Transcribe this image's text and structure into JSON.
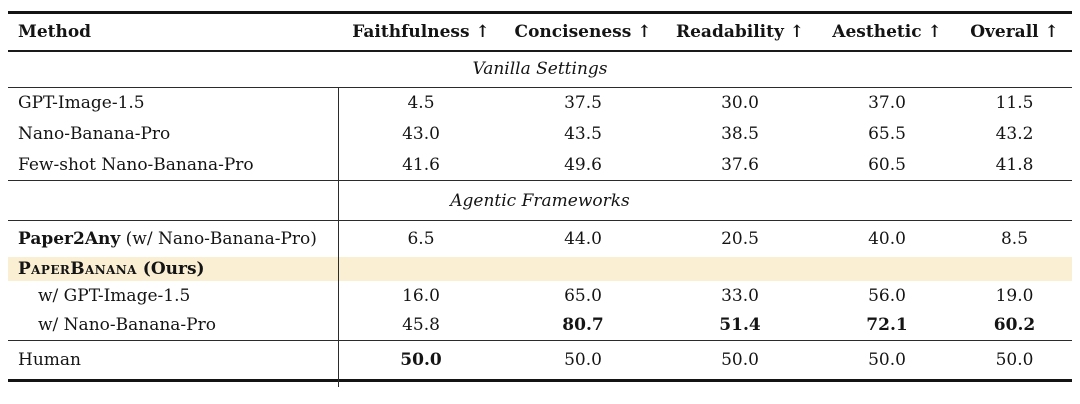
{
  "table": {
    "columns": [
      "Method",
      "Faithfulness ↑",
      "Conciseness ↑",
      "Readability ↑",
      "Aesthetic ↑",
      "Overall ↑"
    ],
    "highlight_color": "#FAEFD3",
    "text_color": "#141414",
    "rule_color": "#141414",
    "rows": [
      {
        "type": "section",
        "label": "Vanilla Settings"
      },
      {
        "type": "data",
        "name": "GPT-Image-1.5",
        "values": [
          "4.5",
          "37.5",
          "30.0",
          "37.0",
          "11.5"
        ],
        "bold": [
          false,
          false,
          false,
          false,
          false
        ]
      },
      {
        "type": "data",
        "name": "Nano-Banana-Pro",
        "values": [
          "43.0",
          "43.5",
          "38.5",
          "65.5",
          "43.2"
        ],
        "bold": [
          false,
          false,
          false,
          false,
          false
        ]
      },
      {
        "type": "data",
        "name": "Few-shot Nano-Banana-Pro",
        "values": [
          "41.6",
          "49.6",
          "37.6",
          "60.5",
          "41.8"
        ],
        "bold": [
          false,
          false,
          false,
          false,
          false
        ]
      },
      {
        "type": "section",
        "label": "Agentic Frameworks"
      },
      {
        "type": "data",
        "name": "Paper2Any",
        "name_bold": true,
        "suffix": " (w/ Nano-Banana-Pro)",
        "values": [
          "6.5",
          "44.0",
          "20.5",
          "40.0",
          "8.5"
        ],
        "bold": [
          false,
          false,
          false,
          false,
          false
        ]
      },
      {
        "type": "highlight",
        "name": "PaperBanana",
        "name_bold": true,
        "name_smallcaps": true,
        "suffix": " (Ours)",
        "suffix_bold": true,
        "values": [
          "",
          "",
          "",
          "",
          ""
        ],
        "bold": [
          false,
          false,
          false,
          false,
          false
        ]
      },
      {
        "type": "data",
        "name": "w/ GPT-Image-1.5",
        "indent": true,
        "values": [
          "16.0",
          "65.0",
          "33.0",
          "56.0",
          "19.0"
        ],
        "bold": [
          false,
          false,
          false,
          false,
          false
        ]
      },
      {
        "type": "data",
        "name": "w/ Nano-Banana-Pro",
        "indent": true,
        "values": [
          "45.8",
          "80.7",
          "51.4",
          "72.1",
          "60.2"
        ],
        "bold": [
          false,
          true,
          true,
          true,
          true
        ]
      },
      {
        "type": "data",
        "name": "Human",
        "rule_above": true,
        "values": [
          "50.0",
          "50.0",
          "50.0",
          "50.0",
          "50.0"
        ],
        "bold": [
          true,
          false,
          false,
          false,
          false
        ]
      }
    ]
  }
}
